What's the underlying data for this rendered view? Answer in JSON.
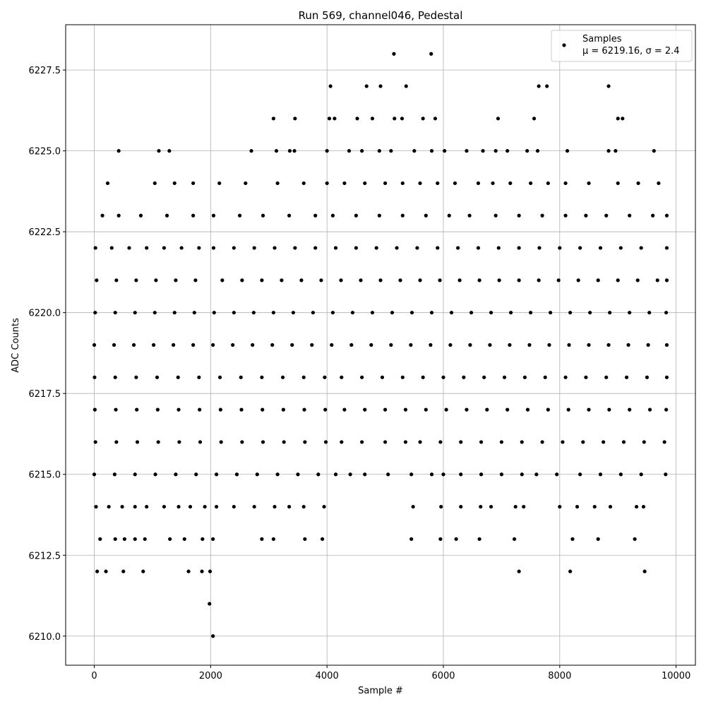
{
  "chart_data": {
    "type": "scatter",
    "title": "Run 569, channel046, Pedestal",
    "x_label": "Sample #",
    "y_label": "ADC Counts",
    "xlim": [
      -492,
      10332
    ],
    "ylim": [
      6209.1,
      6228.9
    ],
    "xticks": [
      0,
      2000,
      4000,
      6000,
      8000,
      10000
    ],
    "yticks": [
      {
        "value": 6210,
        "label": "6210.0"
      },
      {
        "value": 6212.5,
        "label": "6212.5"
      },
      {
        "value": 6215,
        "label": "6215.0"
      },
      {
        "value": 6217.5,
        "label": "6217.5"
      },
      {
        "value": 6220,
        "label": "6220.0"
      },
      {
        "value": 6222.5,
        "label": "6222.5"
      },
      {
        "value": 6225,
        "label": "6225.0"
      },
      {
        "value": 6227.5,
        "label": "6227.5"
      }
    ],
    "grid": true,
    "legend": "upper right",
    "legend_note": "μ = 6219.16, σ = 2.4",
    "series": [
      {
        "name": "Samples",
        "color": "#000000",
        "x": [
          2040,
          1980,
          50,
          200,
          500,
          840,
          1620,
          1850,
          1990,
          7300,
          8180,
          9460,
          100,
          360,
          520,
          700,
          870,
          1300,
          1550,
          1860,
          2040,
          2880,
          3080,
          3620,
          3920,
          5450,
          5950,
          6220,
          6620,
          7220,
          8220,
          8660,
          9290,
          30,
          250,
          480,
          700,
          900,
          1200,
          1450,
          1650,
          1900,
          2100,
          2400,
          2750,
          3100,
          3350,
          3600,
          3950,
          5480,
          5960,
          6300,
          6640,
          6820,
          7240,
          7380,
          8000,
          8300,
          8600,
          8870,
          9320,
          9440,
          0,
          350,
          700,
          1050,
          1400,
          1750,
          2100,
          2450,
          2800,
          3150,
          3500,
          3850,
          4150,
          4400,
          4650,
          5050,
          5450,
          5800,
          6000,
          6300,
          6650,
          7000,
          7350,
          7600,
          7950,
          8350,
          8700,
          9050,
          9400,
          9820,
          20,
          380,
          740,
          1100,
          1460,
          1820,
          2180,
          2540,
          2900,
          3260,
          3620,
          3980,
          4250,
          4600,
          5000,
          5350,
          5600,
          5950,
          6300,
          6650,
          7000,
          7350,
          7700,
          8050,
          8400,
          8750,
          9100,
          9450,
          9800,
          10,
          370,
          730,
          1090,
          1450,
          1810,
          2170,
          2530,
          2890,
          3250,
          3610,
          3970,
          4300,
          4650,
          5000,
          5350,
          5700,
          6050,
          6400,
          6750,
          7100,
          7450,
          7800,
          8150,
          8500,
          8850,
          9200,
          9550,
          9830,
          5,
          360,
          720,
          1080,
          1440,
          1800,
          2160,
          2520,
          2880,
          3240,
          3600,
          3960,
          4250,
          4600,
          4950,
          5300,
          5650,
          6000,
          6350,
          6700,
          7050,
          7400,
          7750,
          8100,
          8450,
          8800,
          9150,
          9500,
          9840,
          0,
          340,
          680,
          1020,
          1360,
          1700,
          2040,
          2380,
          2720,
          3060,
          3400,
          3740,
          4080,
          4420,
          4760,
          5100,
          5440,
          5780,
          6120,
          6460,
          6800,
          7140,
          7480,
          7820,
          8160,
          8500,
          8840,
          9180,
          9520,
          9840,
          15,
          360,
          700,
          1040,
          1380,
          1720,
          2060,
          2400,
          2740,
          3080,
          3420,
          3760,
          4100,
          4440,
          4780,
          5120,
          5460,
          5800,
          6140,
          6480,
          6820,
          7160,
          7500,
          7840,
          8180,
          8520,
          8860,
          9200,
          9540,
          9830,
          40,
          380,
          720,
          1060,
          1400,
          1740,
          2200,
          2540,
          2880,
          3220,
          3560,
          3900,
          4240,
          4580,
          4920,
          5260,
          5600,
          5940,
          6280,
          6620,
          6960,
          7300,
          7640,
          7980,
          8320,
          8660,
          9000,
          9340,
          9680,
          9840,
          20,
          300,
          600,
          900,
          1200,
          1500,
          1800,
          2050,
          2400,
          2750,
          3100,
          3450,
          3800,
          4150,
          4500,
          4850,
          5200,
          5550,
          5900,
          6250,
          6600,
          6950,
          7300,
          7650,
          8000,
          8350,
          8700,
          9050,
          9400,
          9840,
          140,
          420,
          800,
          1250,
          1700,
          2050,
          2500,
          2900,
          3350,
          3800,
          4100,
          4500,
          4900,
          5300,
          5700,
          6100,
          6450,
          6900,
          7300,
          7700,
          8100,
          8450,
          8800,
          9200,
          9600,
          9840,
          230,
          1040,
          1380,
          1700,
          2150,
          2600,
          3150,
          3600,
          4000,
          4300,
          4650,
          5000,
          5300,
          5600,
          5900,
          6200,
          6600,
          6850,
          7150,
          7500,
          7800,
          8100,
          8500,
          9000,
          9350,
          9700,
          420,
          1110,
          1290,
          2700,
          3130,
          3360,
          3440,
          4000,
          4380,
          4600,
          4900,
          5100,
          5500,
          5800,
          6020,
          6400,
          6680,
          6900,
          7100,
          7440,
          7620,
          8130,
          8840,
          8960,
          9620,
          3080,
          3450,
          4040,
          4130,
          4520,
          4780,
          5160,
          5290,
          5650,
          5860,
          6940,
          7560,
          9000,
          9080,
          4060,
          4680,
          4920,
          5360,
          7640,
          7780,
          8840,
          5150,
          5790
        ],
        "values": [
          6210,
          6211,
          6212,
          6212,
          6212,
          6212,
          6212,
          6212,
          6212,
          6212,
          6212,
          6212,
          6213,
          6213,
          6213,
          6213,
          6213,
          6213,
          6213,
          6213,
          6213,
          6213,
          6213,
          6213,
          6213,
          6213,
          6213,
          6213,
          6213,
          6213,
          6213,
          6213,
          6213,
          6214,
          6214,
          6214,
          6214,
          6214,
          6214,
          6214,
          6214,
          6214,
          6214,
          6214,
          6214,
          6214,
          6214,
          6214,
          6214,
          6214,
          6214,
          6214,
          6214,
          6214,
          6214,
          6214,
          6214,
          6214,
          6214,
          6214,
          6214,
          6214,
          6215,
          6215,
          6215,
          6215,
          6215,
          6215,
          6215,
          6215,
          6215,
          6215,
          6215,
          6215,
          6215,
          6215,
          6215,
          6215,
          6215,
          6215,
          6215,
          6215,
          6215,
          6215,
          6215,
          6215,
          6215,
          6215,
          6215,
          6215,
          6215,
          6215,
          6216,
          6216,
          6216,
          6216,
          6216,
          6216,
          6216,
          6216,
          6216,
          6216,
          6216,
          6216,
          6216,
          6216,
          6216,
          6216,
          6216,
          6216,
          6216,
          6216,
          6216,
          6216,
          6216,
          6216,
          6216,
          6216,
          6216,
          6216,
          6216,
          6217,
          6217,
          6217,
          6217,
          6217,
          6217,
          6217,
          6217,
          6217,
          6217,
          6217,
          6217,
          6217,
          6217,
          6217,
          6217,
          6217,
          6217,
          6217,
          6217,
          6217,
          6217,
          6217,
          6217,
          6217,
          6217,
          6217,
          6217,
          6217,
          6218,
          6218,
          6218,
          6218,
          6218,
          6218,
          6218,
          6218,
          6218,
          6218,
          6218,
          6218,
          6218,
          6218,
          6218,
          6218,
          6218,
          6218,
          6218,
          6218,
          6218,
          6218,
          6218,
          6218,
          6218,
          6218,
          6218,
          6218,
          6218,
          6219,
          6219,
          6219,
          6219,
          6219,
          6219,
          6219,
          6219,
          6219,
          6219,
          6219,
          6219,
          6219,
          6219,
          6219,
          6219,
          6219,
          6219,
          6219,
          6219,
          6219,
          6219,
          6219,
          6219,
          6219,
          6219,
          6219,
          6219,
          6219,
          6219,
          6220,
          6220,
          6220,
          6220,
          6220,
          6220,
          6220,
          6220,
          6220,
          6220,
          6220,
          6220,
          6220,
          6220,
          6220,
          6220,
          6220,
          6220,
          6220,
          6220,
          6220,
          6220,
          6220,
          6220,
          6220,
          6220,
          6220,
          6220,
          6220,
          6220,
          6221,
          6221,
          6221,
          6221,
          6221,
          6221,
          6221,
          6221,
          6221,
          6221,
          6221,
          6221,
          6221,
          6221,
          6221,
          6221,
          6221,
          6221,
          6221,
          6221,
          6221,
          6221,
          6221,
          6221,
          6221,
          6221,
          6221,
          6221,
          6221,
          6221,
          6222,
          6222,
          6222,
          6222,
          6222,
          6222,
          6222,
          6222,
          6222,
          6222,
          6222,
          6222,
          6222,
          6222,
          6222,
          6222,
          6222,
          6222,
          6222,
          6222,
          6222,
          6222,
          6222,
          6222,
          6222,
          6222,
          6222,
          6222,
          6222,
          6222,
          6223,
          6223,
          6223,
          6223,
          6223,
          6223,
          6223,
          6223,
          6223,
          6223,
          6223,
          6223,
          6223,
          6223,
          6223,
          6223,
          6223,
          6223,
          6223,
          6223,
          6223,
          6223,
          6223,
          6223,
          6223,
          6223,
          6224,
          6224,
          6224,
          6224,
          6224,
          6224,
          6224,
          6224,
          6224,
          6224,
          6224,
          6224,
          6224,
          6224,
          6224,
          6224,
          6224,
          6224,
          6224,
          6224,
          6224,
          6224,
          6224,
          6224,
          6224,
          6224,
          6225,
          6225,
          6225,
          6225,
          6225,
          6225,
          6225,
          6225,
          6225,
          6225,
          6225,
          6225,
          6225,
          6225,
          6225,
          6225,
          6225,
          6225,
          6225,
          6225,
          6225,
          6225,
          6225,
          6225,
          6225,
          6226,
          6226,
          6226,
          6226,
          6226,
          6226,
          6226,
          6226,
          6226,
          6226,
          6226,
          6226,
          6226,
          6226,
          6227,
          6227,
          6227,
          6227,
          6227,
          6227,
          6227,
          6228,
          6228
        ]
      }
    ]
  }
}
